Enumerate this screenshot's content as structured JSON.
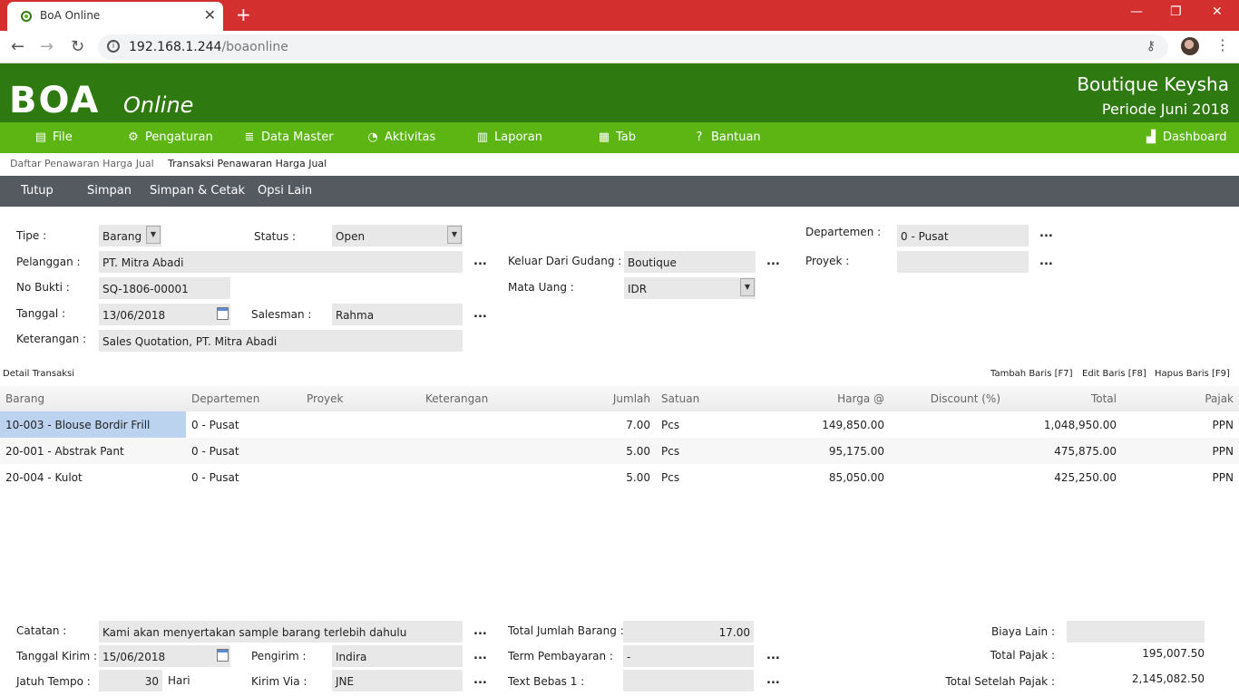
{
  "browser": {
    "tab_title": "BoA Online",
    "url_host": "192.168.1.244",
    "url_path": "/boaonline"
  },
  "header": {
    "logo": "BOA",
    "logo_sub": "Online",
    "company": "Boutique Keysha",
    "periode": "Periode Juni 2018"
  },
  "menu": {
    "items": [
      "File",
      "Pengaturan",
      "Data Master",
      "Aktivitas",
      "Laporan",
      "Tab",
      "Bantuan",
      "Dashboard"
    ]
  },
  "breadcrumb": {
    "list": "Daftar Penawaran Harga Jual",
    "current": "Transaksi Penawaran Harga Jual"
  },
  "actions": {
    "tutup": "Tutup",
    "simpan": "Simpan",
    "simpan_cetak": "Simpan & Cetak",
    "opsi": "Opsi Lain"
  },
  "form": {
    "tipe_label": "Tipe :",
    "tipe": "Barang",
    "status_label": "Status :",
    "status": "Open",
    "departemen_label": "Departemen :",
    "departemen": "0 - Pusat",
    "pelanggan_label": "Pelanggan :",
    "pelanggan": "PT. Mitra Abadi",
    "gudang_label": "Keluar Dari Gudang :",
    "gudang": "Boutique",
    "proyek_label": "Proyek :",
    "proyek": "",
    "nobukti_label": "No Bukti :",
    "nobukti": "SQ-1806-00001",
    "matauang_label": "Mata Uang :",
    "matauang": "IDR",
    "tanggal_label": "Tanggal :",
    "tanggal": "13/06/2018",
    "salesman_label": "Salesman :",
    "salesman": "Rahma",
    "keterangan_label": "Keterangan :",
    "keterangan": "Sales Quotation, PT. Mitra Abadi",
    "dots": "..."
  },
  "detail": {
    "title": "Detail Transaksi",
    "tambah": "Tambah Baris [F7]",
    "edit": "Edit Baris [F8]",
    "hapus": "Hapus Baris [F9]",
    "columns": {
      "barang": "Barang",
      "departemen": "Departemen",
      "proyek": "Proyek",
      "keterangan": "Keterangan",
      "jumlah": "Jumlah",
      "satuan": "Satuan",
      "harga": "Harga @",
      "discount": "Discount (%)",
      "total": "Total",
      "pajak": "Pajak"
    },
    "rows": [
      {
        "barang": "10-003 - Blouse Bordir Frill",
        "departemen": "0 - Pusat",
        "jumlah": "7.00",
        "satuan": "Pcs",
        "harga": "149,850.00",
        "total": "1,048,950.00",
        "pajak": "PPN"
      },
      {
        "barang": "20-001 - Abstrak Pant",
        "departemen": "0 - Pusat",
        "jumlah": "5.00",
        "satuan": "Pcs",
        "harga": "95,175.00",
        "total": "475,875.00",
        "pajak": "PPN"
      },
      {
        "barang": "20-004 - Kulot",
        "departemen": "0 - Pusat",
        "jumlah": "5.00",
        "satuan": "Pcs",
        "harga": "85,050.00",
        "total": "425,250.00",
        "pajak": "PPN"
      }
    ]
  },
  "footer": {
    "catatan_label": "Catatan :",
    "catatan": "Kami akan menyertakan sample barang terlebih dahulu",
    "total_jumlah_label": "Total Jumlah Barang :",
    "total_jumlah": "17.00",
    "biaya_label": "Biaya Lain :",
    "biaya": "",
    "tglkirim_label": "Tanggal Kirim :",
    "tglkirim": "15/06/2018",
    "pengirim_label": "Pengirim :",
    "pengirim": "Indira",
    "term_label": "Term Pembayaran :",
    "term": "-",
    "totpajak_label": "Total Pajak :",
    "totpajak": "195,007.50",
    "jatuh_label": "Jatuh Tempo :",
    "jatuh": "30",
    "hari": "Hari",
    "kirimvia_label": "Kirim Via :",
    "kirimvia": "JNE",
    "textbebas_label": "Text Bebas 1 :",
    "textbebas": "",
    "setelahpajak_label": "Total Setelah Pajak :",
    "setelahpajak": "2,145,082.50"
  }
}
